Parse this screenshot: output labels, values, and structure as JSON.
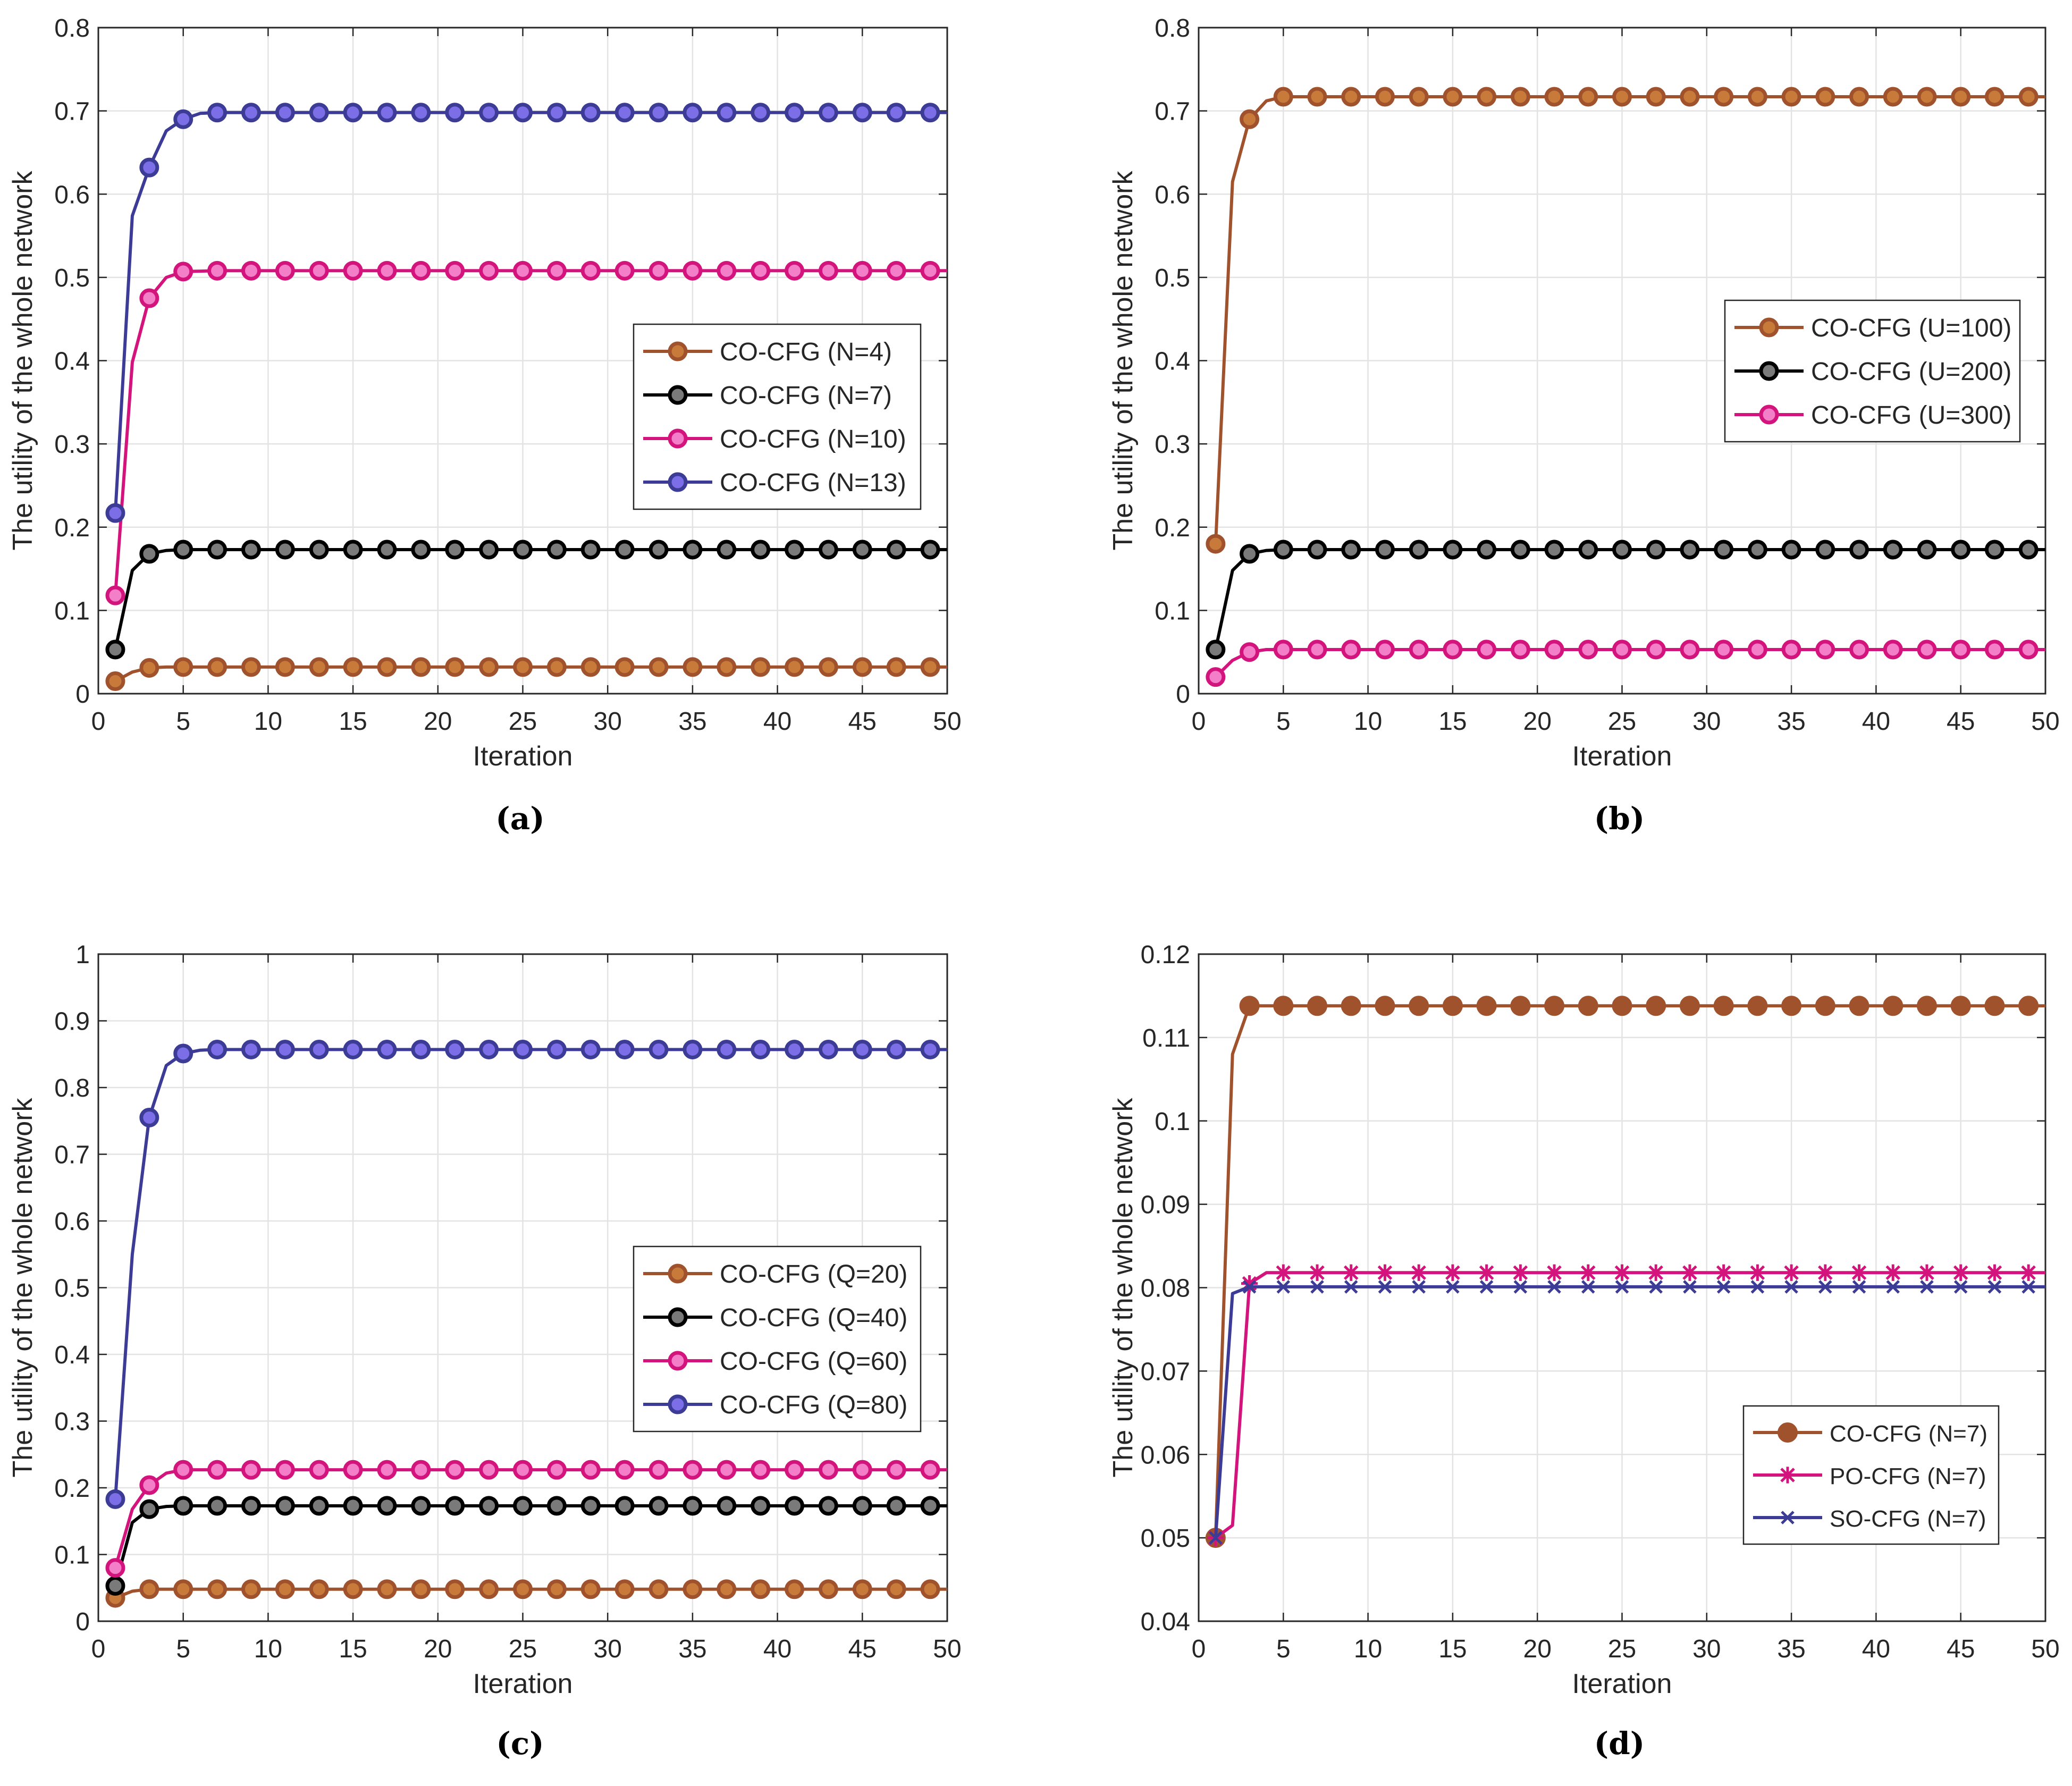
{
  "chart_data": [
    {
      "type": "line",
      "caption": "(a)",
      "xlabel": "Iteration",
      "ylabel": "The utility of the whole network",
      "xlim": [
        0,
        50
      ],
      "ylim": [
        0,
        0.8
      ],
      "xticks": [
        0,
        5,
        10,
        15,
        20,
        25,
        30,
        35,
        40,
        45,
        50
      ],
      "yticks": [
        0,
        0.1,
        0.2,
        0.3,
        0.4,
        0.5,
        0.6,
        0.7,
        0.8
      ],
      "ytick_labels": [
        "0",
        "0.1",
        "0.2",
        "0.3",
        "0.4",
        "0.5",
        "0.6",
        "0.7",
        "0.8"
      ],
      "grid": true,
      "legend_position": "center-right",
      "series": [
        {
          "name": "CO-CFG (N=4)",
          "color": "#a0522d",
          "marker": "circle",
          "curve": [
            [
              1,
              0.015
            ],
            [
              2,
              0.026
            ],
            [
              3,
              0.031
            ],
            [
              4,
              0.032
            ],
            [
              5,
              0.032
            ],
            [
              50,
              0.032
            ]
          ]
        },
        {
          "name": "CO-CFG (N=7)",
          "color": "#000000",
          "marker": "circle",
          "curve": [
            [
              1,
              0.053
            ],
            [
              2,
              0.148
            ],
            [
              3,
              0.168
            ],
            [
              4,
              0.172
            ],
            [
              5,
              0.173
            ],
            [
              50,
              0.173
            ]
          ]
        },
        {
          "name": "CO-CFG (N=10)",
          "color": "#d4147d",
          "marker": "circle",
          "curve": [
            [
              1,
              0.118
            ],
            [
              2,
              0.398
            ],
            [
              3,
              0.475
            ],
            [
              4,
              0.5
            ],
            [
              5,
              0.507
            ],
            [
              7,
              0.508
            ],
            [
              50,
              0.508
            ]
          ]
        },
        {
          "name": "CO-CFG (N=13)",
          "color": "#3c3c96",
          "marker": "circle",
          "curve": [
            [
              1,
              0.217
            ],
            [
              2,
              0.574
            ],
            [
              3,
              0.632
            ],
            [
              4,
              0.676
            ],
            [
              5,
              0.69
            ],
            [
              6,
              0.697
            ],
            [
              7,
              0.698
            ],
            [
              50,
              0.698
            ]
          ]
        }
      ]
    },
    {
      "type": "line",
      "caption": "(b)",
      "xlabel": "Iteration",
      "ylabel": "The utility of the whole network",
      "xlim": [
        0,
        50
      ],
      "ylim": [
        0,
        0.8
      ],
      "xticks": [
        0,
        5,
        10,
        15,
        20,
        25,
        30,
        35,
        40,
        45,
        50
      ],
      "yticks": [
        0,
        0.1,
        0.2,
        0.3,
        0.4,
        0.5,
        0.6,
        0.7,
        0.8
      ],
      "ytick_labels": [
        "0",
        "0.1",
        "0.2",
        "0.3",
        "0.4",
        "0.5",
        "0.6",
        "0.7",
        "0.8"
      ],
      "grid": true,
      "legend_position": "upper-right",
      "series": [
        {
          "name": "CO-CFG (U=100)",
          "color": "#a0522d",
          "marker": "circle",
          "curve": [
            [
              1,
              0.18
            ],
            [
              2,
              0.615
            ],
            [
              3,
              0.69
            ],
            [
              4,
              0.712
            ],
            [
              5,
              0.717
            ],
            [
              50,
              0.717
            ]
          ]
        },
        {
          "name": "CO-CFG (U=200)",
          "color": "#000000",
          "marker": "circle",
          "curve": [
            [
              1,
              0.053
            ],
            [
              2,
              0.148
            ],
            [
              3,
              0.168
            ],
            [
              4,
              0.172
            ],
            [
              5,
              0.173
            ],
            [
              50,
              0.173
            ]
          ]
        },
        {
          "name": "CO-CFG (U=300)",
          "color": "#d4147d",
          "marker": "circle",
          "curve": [
            [
              1,
              0.02
            ],
            [
              2,
              0.04
            ],
            [
              3,
              0.05
            ],
            [
              4,
              0.053
            ],
            [
              5,
              0.053
            ],
            [
              50,
              0.053
            ]
          ]
        }
      ]
    },
    {
      "type": "line",
      "caption": "(c)",
      "xlabel": "Iteration",
      "ylabel": "The utility of the whole network",
      "xlim": [
        0,
        50
      ],
      "ylim": [
        0,
        1
      ],
      "xticks": [
        0,
        5,
        10,
        15,
        20,
        25,
        30,
        35,
        40,
        45,
        50
      ],
      "yticks": [
        0,
        0.1,
        0.2,
        0.3,
        0.4,
        0.5,
        0.6,
        0.7,
        0.8,
        0.9,
        1
      ],
      "ytick_labels": [
        "0",
        "0.1",
        "0.2",
        "0.3",
        "0.4",
        "0.5",
        "0.6",
        "0.7",
        "0.8",
        "0.9",
        "1"
      ],
      "grid": true,
      "legend_position": "center-right",
      "series": [
        {
          "name": "CO-CFG (Q=20)",
          "color": "#a0522d",
          "marker": "circle",
          "curve": [
            [
              1,
              0.035
            ],
            [
              2,
              0.045
            ],
            [
              3,
              0.048
            ],
            [
              4,
              0.048
            ],
            [
              50,
              0.048
            ]
          ]
        },
        {
          "name": "CO-CFG (Q=40)",
          "color": "#000000",
          "marker": "circle",
          "curve": [
            [
              1,
              0.053
            ],
            [
              2,
              0.148
            ],
            [
              3,
              0.168
            ],
            [
              4,
              0.172
            ],
            [
              5,
              0.173
            ],
            [
              50,
              0.173
            ]
          ]
        },
        {
          "name": "CO-CFG (Q=60)",
          "color": "#d4147d",
          "marker": "circle",
          "curve": [
            [
              1,
              0.08
            ],
            [
              2,
              0.168
            ],
            [
              3,
              0.204
            ],
            [
              4,
              0.222
            ],
            [
              5,
              0.227
            ],
            [
              50,
              0.227
            ]
          ]
        },
        {
          "name": "CO-CFG (Q=80)",
          "color": "#3c3c96",
          "marker": "circle",
          "curve": [
            [
              1,
              0.183
            ],
            [
              2,
              0.55
            ],
            [
              3,
              0.755
            ],
            [
              4,
              0.833
            ],
            [
              5,
              0.851
            ],
            [
              6,
              0.856
            ],
            [
              7,
              0.857
            ],
            [
              50,
              0.857
            ]
          ]
        }
      ]
    },
    {
      "type": "line",
      "caption": "(d)",
      "xlabel": "Iteration",
      "ylabel": "The utility of the whole network",
      "xlim": [
        0,
        50
      ],
      "ylim": [
        0.04,
        0.12
      ],
      "xticks": [
        0,
        5,
        10,
        15,
        20,
        25,
        30,
        35,
        40,
        45,
        50
      ],
      "yticks": [
        0.04,
        0.05,
        0.06,
        0.07,
        0.08,
        0.09,
        0.1,
        0.11,
        0.12
      ],
      "ytick_labels": [
        "0.04",
        "0.05",
        "0.06",
        "0.07",
        "0.08",
        "0.09",
        "0.1",
        "0.11",
        "0.12"
      ],
      "grid": true,
      "legend_position": "lower-right",
      "series": [
        {
          "name": "CO-CFG (N=7)",
          "color": "#a0522d",
          "marker": "dot",
          "curve": [
            [
              1,
              0.05
            ],
            [
              2,
              0.108
            ],
            [
              3,
              0.1138
            ],
            [
              50,
              0.1138
            ]
          ]
        },
        {
          "name": "PO-CFG (N=7)",
          "color": "#d4147d",
          "marker": "star",
          "curve": [
            [
              1,
              0.05
            ],
            [
              2,
              0.0515
            ],
            [
              3,
              0.0805
            ],
            [
              4,
              0.0818
            ],
            [
              50,
              0.0818
            ]
          ]
        },
        {
          "name": "SO-CFG (N=7)",
          "color": "#3c3c96",
          "marker": "x",
          "curve": [
            [
              1,
              0.05
            ],
            [
              2,
              0.0793
            ],
            [
              3,
              0.0801
            ],
            [
              50,
              0.0801
            ]
          ]
        }
      ]
    }
  ]
}
